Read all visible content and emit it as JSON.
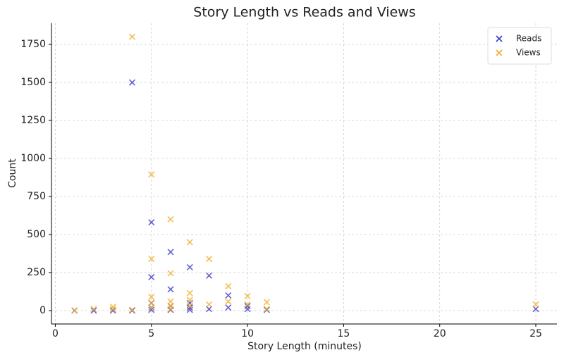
{
  "chart_data": {
    "type": "scatter",
    "title": "Story Length vs Reads and Views",
    "xlabel": "Story Length (minutes)",
    "ylabel": "Count",
    "xlim": [
      -0.2,
      26.1
    ],
    "ylim": [
      -88,
      1889
    ],
    "xticks": [
      0,
      5,
      10,
      15,
      20,
      25
    ],
    "yticks": [
      0,
      250,
      500,
      750,
      1000,
      1250,
      1500,
      1750
    ],
    "grid": true,
    "legend": "upper right",
    "series": [
      {
        "name": "Reads",
        "color": "#3b3bcc",
        "x": [
          1,
          2,
          3,
          4,
          4,
          5,
          5,
          5,
          5,
          5,
          6,
          6,
          6,
          6,
          7,
          7,
          7,
          7,
          8,
          8,
          9,
          9,
          10,
          10,
          11,
          25
        ],
        "values": [
          0,
          0,
          0,
          0,
          1500,
          580,
          220,
          50,
          20,
          5,
          385,
          140,
          30,
          5,
          285,
          50,
          20,
          5,
          230,
          10,
          100,
          20,
          30,
          10,
          5,
          10
        ]
      },
      {
        "name": "Views",
        "color": "#f0ae2a",
        "x": [
          1,
          2,
          3,
          3,
          4,
          4,
          5,
          5,
          5,
          5,
          5,
          6,
          6,
          6,
          6,
          6,
          7,
          7,
          7,
          7,
          8,
          8,
          9,
          9,
          10,
          10,
          11,
          11,
          25
        ],
        "values": [
          0,
          10,
          25,
          10,
          1800,
          5,
          895,
          340,
          90,
          50,
          20,
          600,
          245,
          60,
          30,
          10,
          450,
          115,
          70,
          30,
          340,
          40,
          160,
          60,
          95,
          40,
          55,
          10,
          40
        ]
      }
    ]
  }
}
